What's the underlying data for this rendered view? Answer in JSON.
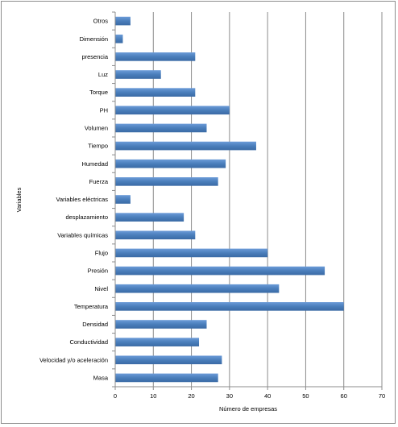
{
  "chart_data": {
    "type": "bar",
    "orientation": "horizontal",
    "xlabel": "Número de empresas",
    "ylabel": "Variables",
    "xlim": [
      0,
      70
    ],
    "xticks": [
      0,
      10,
      20,
      30,
      40,
      50,
      60,
      70
    ],
    "grid": "vertical",
    "bar_color": "#4a7ebb",
    "categories": [
      "Otros",
      "Dimensión",
      "presencia",
      "Luz",
      "Torque",
      "PH",
      "Volumen",
      "Tiempo",
      "Humedad",
      "Fuerza",
      "Variables eléctricas",
      "desplazamiento",
      "Variables químicas",
      "Flujo",
      "Presión",
      "Nivel",
      "Temperatura",
      "Densidad",
      "Conductividad",
      "Velocidad y/o aceleración",
      "Masa"
    ],
    "values": [
      4,
      2,
      21,
      12,
      21,
      30,
      24,
      37,
      29,
      27,
      4,
      18,
      21,
      40,
      55,
      43,
      60,
      24,
      22,
      28,
      27
    ]
  }
}
